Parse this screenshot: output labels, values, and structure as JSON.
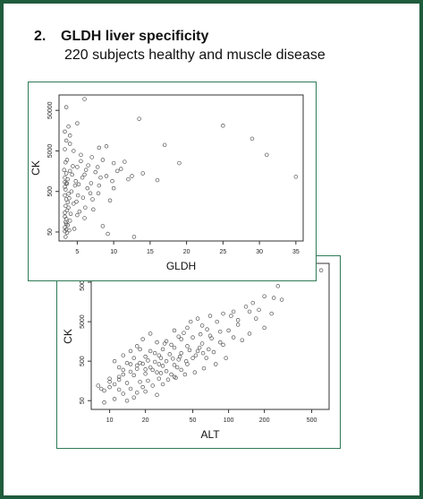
{
  "slide": {
    "number": "2.",
    "title": "GLDH liver specificity",
    "subtitle": "220 subjects healthy and muscle disease"
  },
  "colors": {
    "frame": "#1f5c3c",
    "panel_border": "#2f7a56",
    "points": "#555555"
  },
  "chart_data": [
    {
      "type": "scatter",
      "xlabel": "GLDH",
      "ylabel": "CK",
      "x_scale": "linear",
      "y_scale": "log",
      "xlim": [
        2.5,
        36
      ],
      "ylim": [
        30,
        120000
      ],
      "x_ticks": [
        5,
        10,
        15,
        20,
        25,
        30,
        35
      ],
      "y_ticks": [
        50,
        500,
        5000,
        50000
      ],
      "grid": false,
      "legend": "none",
      "points": [
        [
          6,
          95000
        ],
        [
          3.5,
          60000
        ],
        [
          13.5,
          31000
        ],
        [
          5,
          24000
        ],
        [
          25,
          21000
        ],
        [
          3.8,
          20000
        ],
        [
          29,
          10000
        ],
        [
          17,
          7000
        ],
        [
          4,
          12000
        ],
        [
          3.3,
          15000
        ],
        [
          31,
          4000
        ],
        [
          35,
          1150
        ],
        [
          19,
          2500
        ],
        [
          14,
          1400
        ],
        [
          12.5,
          1200
        ],
        [
          16,
          950
        ],
        [
          3.5,
          9000
        ],
        [
          4,
          7500
        ],
        [
          9,
          6500
        ],
        [
          8,
          6000
        ],
        [
          3.3,
          5500
        ],
        [
          4.5,
          5000
        ],
        [
          5.5,
          4000
        ],
        [
          7,
          3500
        ],
        [
          8.5,
          3000
        ],
        [
          10,
          2500
        ],
        [
          6.5,
          2200
        ],
        [
          5,
          2000
        ],
        [
          11,
          1800
        ],
        [
          3.2,
          1700
        ],
        [
          4,
          1600
        ],
        [
          7.5,
          1500
        ],
        [
          6,
          1300
        ],
        [
          9,
          1200
        ],
        [
          12,
          1000
        ],
        [
          4.8,
          900
        ],
        [
          3.5,
          800
        ],
        [
          5.2,
          750
        ],
        [
          8,
          700
        ],
        [
          10,
          600
        ],
        [
          4.2,
          500
        ],
        [
          6.8,
          450
        ],
        [
          3.3,
          400
        ],
        [
          5.8,
          350
        ],
        [
          9.5,
          300
        ],
        [
          4.5,
          250
        ],
        [
          3.8,
          200
        ],
        [
          7.2,
          180
        ],
        [
          3.3,
          150
        ],
        [
          5,
          130
        ],
        [
          6,
          110
        ],
        [
          4,
          95
        ],
        [
          3.5,
          80
        ],
        [
          8.5,
          70
        ],
        [
          3.3,
          65
        ],
        [
          4.6,
          60
        ],
        [
          3.9,
          55
        ],
        [
          9.2,
          45
        ],
        [
          12.8,
          38
        ],
        [
          3.4,
          38
        ],
        [
          3.6,
          48
        ],
        [
          3.3,
          1100
        ],
        [
          3.4,
          2600
        ],
        [
          3.6,
          3000
        ],
        [
          3.7,
          1000
        ],
        [
          3.3,
          650
        ],
        [
          3.5,
          320
        ],
        [
          3.7,
          270
        ],
        [
          3.4,
          220
        ],
        [
          3.6,
          170
        ],
        [
          3.3,
          120
        ],
        [
          3.5,
          105
        ],
        [
          3.4,
          88
        ],
        [
          3.7,
          74
        ],
        [
          3.5,
          58
        ],
        [
          3.3,
          52
        ],
        [
          3.8,
          440
        ],
        [
          3.4,
          560
        ],
        [
          3.6,
          780
        ],
        [
          4.3,
          1300
        ],
        [
          4.4,
          2100
        ],
        [
          5.5,
          2800
        ],
        [
          6.2,
          1700
        ],
        [
          7.8,
          2000
        ],
        [
          8.2,
          1100
        ],
        [
          10.5,
          1600
        ],
        [
          11.5,
          2700
        ],
        [
          9.8,
          900
        ],
        [
          6.4,
          600
        ],
        [
          5.1,
          400
        ],
        [
          7.1,
          320
        ],
        [
          4.9,
          280
        ],
        [
          6.1,
          200
        ],
        [
          5.3,
          160
        ],
        [
          4.1,
          140
        ],
        [
          3.9,
          340
        ],
        [
          4.7,
          700
        ],
        [
          5.7,
          1100
        ],
        [
          6.9,
          800
        ],
        [
          7.9,
          450
        ],
        [
          3.3,
          850
        ],
        [
          3.5,
          1400
        ]
      ]
    },
    {
      "type": "scatter",
      "xlabel": "ALT",
      "ylabel": "CK",
      "x_scale": "log",
      "y_scale": "log",
      "xlim": [
        7,
        700
      ],
      "ylim": [
        30,
        150000
      ],
      "x_ticks": [
        10,
        20,
        50,
        100,
        200,
        500
      ],
      "y_ticks": [
        50,
        500,
        5000,
        50000
      ],
      "grid": false,
      "legend": "none",
      "points": [
        [
          600,
          100000
        ],
        [
          310,
          60000
        ],
        [
          260,
          40000
        ],
        [
          200,
          22000
        ],
        [
          240,
          20000
        ],
        [
          160,
          15000
        ],
        [
          140,
          12000
        ],
        [
          110,
          9000
        ],
        [
          90,
          8000
        ],
        [
          70,
          7000
        ],
        [
          55,
          6000
        ],
        [
          120,
          5500
        ],
        [
          80,
          5000
        ],
        [
          60,
          4000
        ],
        [
          45,
          3500
        ],
        [
          35,
          3000
        ],
        [
          100,
          3000
        ],
        [
          150,
          2500
        ],
        [
          70,
          2200
        ],
        [
          50,
          2000
        ],
        [
          40,
          1800
        ],
        [
          30,
          1600
        ],
        [
          25,
          1500
        ],
        [
          60,
          1400
        ],
        [
          90,
          1300
        ],
        [
          45,
          1200
        ],
        [
          35,
          1100
        ],
        [
          28,
          1000
        ],
        [
          22,
          900
        ],
        [
          55,
          900
        ],
        [
          75,
          850
        ],
        [
          40,
          800
        ],
        [
          32,
          750
        ],
        [
          26,
          700
        ],
        [
          20,
          650
        ],
        [
          50,
          600
        ],
        [
          65,
          600
        ],
        [
          38,
          550
        ],
        [
          30,
          500
        ],
        [
          24,
          480
        ],
        [
          18,
          450
        ],
        [
          15,
          420
        ],
        [
          45,
          420
        ],
        [
          35,
          400
        ],
        [
          28,
          380
        ],
        [
          22,
          350
        ],
        [
          17,
          320
        ],
        [
          13,
          300
        ],
        [
          40,
          300
        ],
        [
          30,
          280
        ],
        [
          25,
          260
        ],
        [
          20,
          240
        ],
        [
          16,
          220
        ],
        [
          12,
          200
        ],
        [
          10,
          180
        ],
        [
          35,
          200
        ],
        [
          26,
          180
        ],
        [
          21,
          160
        ],
        [
          18,
          150
        ],
        [
          14,
          140
        ],
        [
          11,
          130
        ],
        [
          28,
          130
        ],
        [
          23,
          120
        ],
        [
          19,
          110
        ],
        [
          15,
          100
        ],
        [
          12,
          95
        ],
        [
          9,
          90
        ],
        [
          20,
          85
        ],
        [
          17,
          80
        ],
        [
          13,
          75
        ],
        [
          25,
          70
        ],
        [
          16,
          60
        ],
        [
          11,
          55
        ],
        [
          14,
          50
        ],
        [
          9,
          45
        ],
        [
          8,
          120
        ],
        [
          8.5,
          100
        ],
        [
          10,
          150
        ],
        [
          22,
          2500
        ],
        [
          19,
          1800
        ],
        [
          17,
          1200
        ],
        [
          15,
          900
        ],
        [
          13,
          700
        ],
        [
          11,
          500
        ],
        [
          85,
          1500
        ],
        [
          110,
          2000
        ],
        [
          130,
          1700
        ],
        [
          95,
          600
        ],
        [
          78,
          420
        ],
        [
          62,
          330
        ],
        [
          52,
          260
        ],
        [
          43,
          230
        ],
        [
          36,
          190
        ],
        [
          31,
          170
        ],
        [
          27,
          600
        ],
        [
          24,
          800
        ],
        [
          18,
          1000
        ],
        [
          16,
          600
        ],
        [
          14,
          450
        ],
        [
          12,
          350
        ],
        [
          33,
          1300
        ],
        [
          42,
          2600
        ],
        [
          48,
          5000
        ],
        [
          66,
          3200
        ],
        [
          58,
          2400
        ],
        [
          72,
          1900
        ],
        [
          85,
          2800
        ],
        [
          120,
          4200
        ],
        [
          170,
          6000
        ],
        [
          200,
          3500
        ],
        [
          230,
          8000
        ],
        [
          180,
          10000
        ],
        [
          150,
          9000
        ],
        [
          105,
          7000
        ],
        [
          280,
          18000
        ],
        [
          38,
          2100
        ],
        [
          29,
          1400
        ],
        [
          21,
          520
        ],
        [
          19,
          430
        ],
        [
          17,
          390
        ],
        [
          23,
          300
        ],
        [
          27,
          250
        ],
        [
          33,
          230
        ],
        [
          37,
          350
        ],
        [
          44,
          500
        ],
        [
          53,
          700
        ],
        [
          61,
          800
        ],
        [
          68,
          1000
        ],
        [
          57,
          1100
        ],
        [
          47,
          950
        ],
        [
          39,
          650
        ],
        [
          34,
          580
        ],
        [
          26,
          420
        ],
        [
          20,
          310
        ],
        [
          15,
          270
        ],
        [
          13,
          230
        ],
        [
          12,
          170
        ],
        [
          10,
          110
        ]
      ]
    }
  ]
}
